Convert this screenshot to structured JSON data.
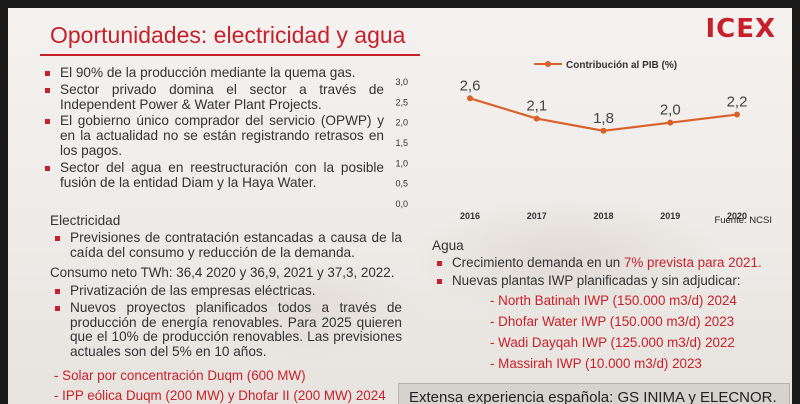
{
  "title": "Oportunidades: electricidad y agua",
  "logo": "ICEX",
  "top_bullets": [
    "El 90% de la producción mediante la quema  gas.",
    "Sector privado domina el sector a través de Independent Power & Water Plant Projects.",
    "El gobierno único comprador del servicio (OPWP) y en la actualidad no se están registrando retrasos en los pagos.",
    "Sector del agua en reestructuración con la posible fusión de la entidad Diam y la Haya Water."
  ],
  "electricidad": {
    "heading": "Electricidad",
    "bullets_1": [
      "Previsiones de contratación estancadas a causa de la caída del consumo y reducción de la demanda."
    ],
    "consumo": "Consumo neto TWh: 36,4 2020 y 36,9, 2021 y 37,3, 2022.",
    "bullets_2": [
      "Privatización de las empresas eléctricas.",
      "Nuevos proyectos planificados todos a través de producción de energía renovables. Para 2025 quieren que el 10% de producción renovables. Las previsiones actuales son del 5% en 10 años."
    ],
    "projects": [
      "- Solar por concentración Duqm (600 MW)",
      "- IPP eólica Duqm (200 MW) y Dhofar II (200 MW) 2024"
    ]
  },
  "agua": {
    "heading": "Agua",
    "bullet_1_pre": "Crecimiento demanda en un ",
    "bullet_1_accent": "7% prevista para 2021.",
    "bullet_2": "Nuevas plantas IWP planificadas y sin adjudicar:",
    "projects": [
      "- North Batinah IWP (150.000 m3/d) 2024",
      "- Dhofar Water IWP (150.000 m3/d) 2023",
      "- Wadi Dayqah IWP (125.000 m3/d) 2022",
      "- Massirah IWP (10.000 m3/d) 2023"
    ]
  },
  "footer": "Extensa experiencia española: GS INIMA y ELECNOR.",
  "source": "Fuente: NCSI",
  "chart_data": {
    "type": "line",
    "x": [
      "2016",
      "2017",
      "2018",
      "2019",
      "2020"
    ],
    "series": [
      {
        "name": "Contribución al PIB (%)",
        "values": [
          2.6,
          2.1,
          1.8,
          2.0,
          2.2
        ]
      }
    ],
    "data_labels": [
      "2,6",
      "2,1",
      "1,8",
      "2,0",
      "2,2"
    ],
    "ylim": [
      0,
      3.0
    ],
    "yticks": [
      "0,0",
      "0,5",
      "1,0",
      "1,5",
      "2,0",
      "2,5",
      "3,0"
    ],
    "ytick_values": [
      0,
      0.5,
      1.0,
      1.5,
      2.0,
      2.5,
      3.0
    ],
    "legend_position": "top",
    "grid": false,
    "color": "#d9622b"
  }
}
